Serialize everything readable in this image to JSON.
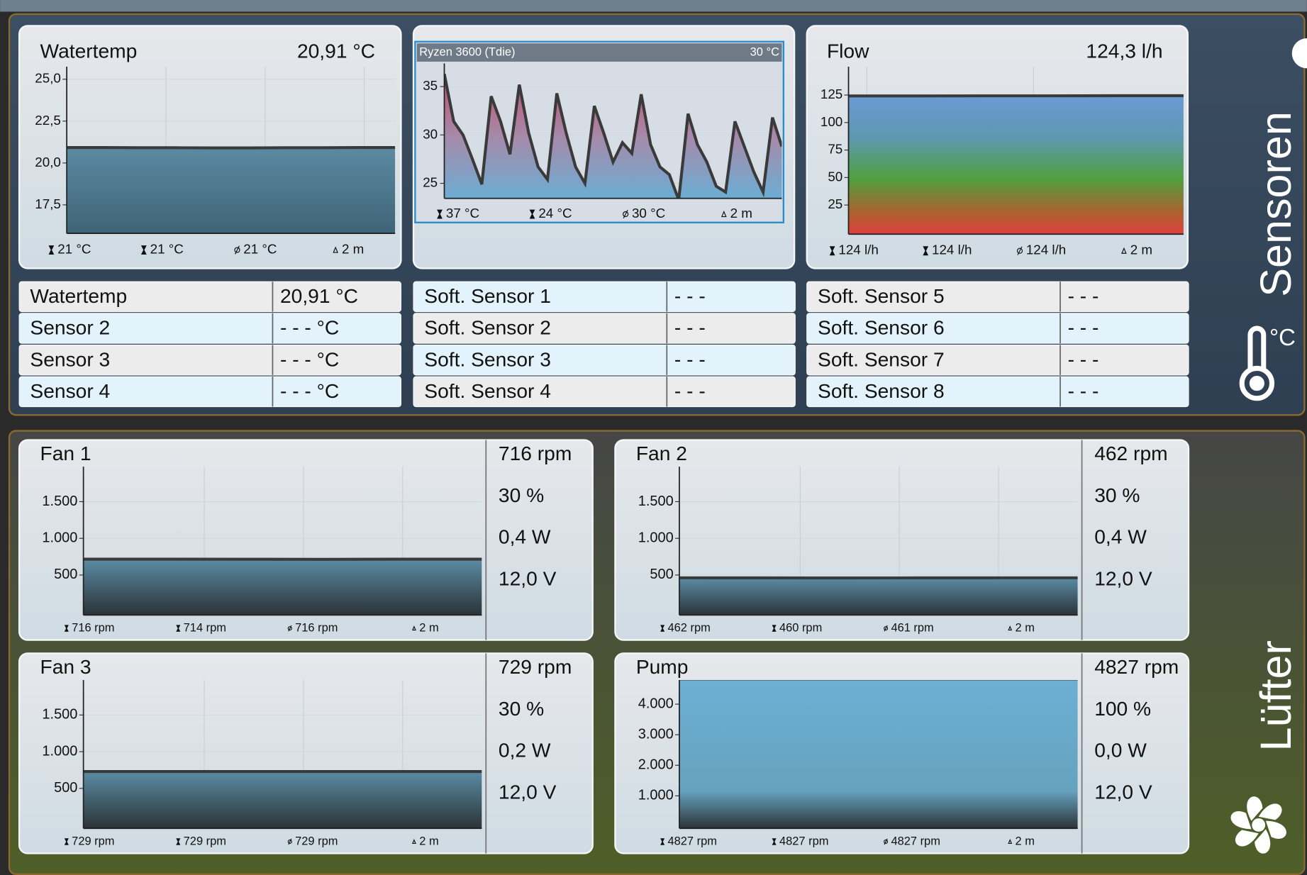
{
  "sensors": {
    "title": "Sensoren",
    "unit": "°C",
    "charts": [
      {
        "title": "Watertemp",
        "value": "20,91 °C",
        "ylim": [
          15.8,
          25.75
        ],
        "yticks": [
          {
            "value": 25,
            "label": "25,0"
          },
          {
            "value": 22.5,
            "label": "22,5"
          },
          {
            "value": 20,
            "label": "20,0"
          },
          {
            "value": 17.5,
            "label": "17,5"
          }
        ],
        "values": [
          20.92,
          20.92,
          20.91,
          20.91,
          20.9,
          20.9,
          20.91,
          20.91,
          20.92,
          20.92
        ],
        "stats": [
          "21 °C",
          "21 °C",
          "21 °C",
          "2 m"
        ]
      },
      {
        "title": "Ryzen 3600 (Tdie)",
        "value": "30 °C",
        "ylim": [
          23.45,
          37.4
        ],
        "yticks": [
          35,
          30,
          25
        ],
        "values": [
          36.3,
          31.4,
          30.0,
          27.5,
          24.9,
          34.0,
          31.4,
          28.0,
          35.2,
          30.2,
          26.7,
          25.4,
          34.3,
          30.2,
          26.7,
          25.0,
          33.0,
          30.2,
          27.2,
          29.2,
          28.1,
          34.2,
          29.0,
          26.7,
          25.9,
          23.3,
          32.2,
          29.0,
          27.2,
          24.7,
          24.1,
          31.4,
          28.8,
          26.2,
          24.1,
          31.8,
          28.8
        ],
        "stats": [
          "37 °C",
          "24 °C",
          "30 °C",
          "2 m"
        ]
      },
      {
        "title": "Flow",
        "value": "124,3 l/h",
        "ylim": [
          -1.5,
          150.8
        ],
        "yticks": [
          125,
          100,
          75,
          50,
          25
        ],
        "values": [
          124.2,
          124.2,
          124.3,
          124.3,
          124.4,
          124.4
        ],
        "stats": [
          "124 l/h",
          "124 l/h",
          "124 l/h",
          "2 m"
        ]
      }
    ],
    "table": [
      [
        [
          "Watertemp",
          "20,91 °C"
        ],
        [
          "Sensor 2",
          "- - - °C"
        ],
        [
          "Sensor 3",
          "- - - °C"
        ],
        [
          "Sensor 4",
          "- - - °C"
        ]
      ],
      [
        [
          "Soft. Sensor 1",
          "- - -"
        ],
        [
          "Soft. Sensor 2",
          "- - -"
        ],
        [
          "Soft. Sensor 3",
          "- - -"
        ],
        [
          "Soft. Sensor 4",
          "- - -"
        ]
      ],
      [
        [
          "Soft. Sensor 5",
          "- - -"
        ],
        [
          "Soft. Sensor 6",
          "- - -"
        ],
        [
          "Soft. Sensor 7",
          "- - -"
        ],
        [
          "Soft. Sensor 8",
          "- - -"
        ]
      ]
    ]
  },
  "fans": {
    "title": "Lüfter",
    "items": [
      {
        "title": "Fan 1",
        "ylim": [
          -45,
          1977
        ],
        "yticks": [
          {
            "value": 1500,
            "label": "1.500"
          },
          {
            "value": 1000,
            "label": "1.000"
          },
          500
        ],
        "values": [
          716,
          716,
          715,
          714,
          716,
          716
        ],
        "stats": [
          "716 rpm",
          "714 rpm",
          "716 rpm",
          "2 m"
        ],
        "readings": [
          "716 rpm",
          "30 %",
          "0,4 W",
          "12,0 V"
        ]
      },
      {
        "title": "Fan 2",
        "ylim": [
          -45,
          1977
        ],
        "yticks": [
          {
            "value": 1500,
            "label": "1.500"
          },
          {
            "value": 1000,
            "label": "1.000"
          },
          500
        ],
        "values": [
          462,
          461,
          460,
          461,
          462,
          462
        ],
        "stats": [
          "462 rpm",
          "460 rpm",
          "461 rpm",
          "2 m"
        ],
        "readings": [
          "462 rpm",
          "30 %",
          "0,4 W",
          "12,0 V"
        ]
      },
      {
        "title": "Fan 3",
        "ylim": [
          -45,
          1977
        ],
        "yticks": [
          {
            "value": 1500,
            "label": "1.500"
          },
          {
            "value": 1000,
            "label": "1.000"
          },
          500
        ],
        "values": [
          729,
          729,
          729,
          729,
          729,
          729
        ],
        "stats": [
          "729 rpm",
          "729 rpm",
          "729 rpm",
          "2 m"
        ],
        "readings": [
          "729 rpm",
          "30 %",
          "0,2 W",
          "12,0 V"
        ]
      },
      {
        "title": "Pump",
        "ylim": [
          -63,
          4790
        ],
        "yticks": [
          {
            "value": 4000,
            "label": "4.000"
          },
          {
            "value": 3000,
            "label": "3.000"
          },
          {
            "value": 2000,
            "label": "2.000"
          },
          {
            "value": 1000,
            "label": "1.000"
          }
        ],
        "values": [
          4827,
          4827,
          4827,
          4827,
          4827,
          4827
        ],
        "stats": [
          "4827 rpm",
          "4827 rpm",
          "4827 rpm",
          "2 m"
        ],
        "readings": [
          "4827 rpm",
          "100 %",
          "0,0 W",
          "12,0 V"
        ]
      }
    ]
  }
}
